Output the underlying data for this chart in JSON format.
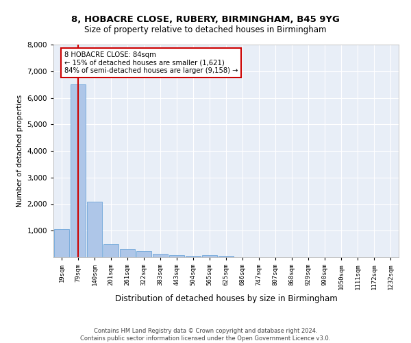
{
  "title1": "8, HOBACRE CLOSE, RUBERY, BIRMINGHAM, B45 9YG",
  "title2": "Size of property relative to detached houses in Birmingham",
  "xlabel": "Distribution of detached houses by size in Birmingham",
  "ylabel": "Number of detached properties",
  "annotation_title": "8 HOBACRE CLOSE: 84sqm",
  "annotation_line2": "← 15% of detached houses are smaller (1,621)",
  "annotation_line3": "84% of semi-detached houses are larger (9,158) →",
  "footer1": "Contains HM Land Registry data © Crown copyright and database right 2024.",
  "footer2": "Contains public sector information licensed under the Open Government Licence v3.0.",
  "bin_labels": [
    "19sqm",
    "79sqm",
    "140sqm",
    "201sqm",
    "261sqm",
    "322sqm",
    "383sqm",
    "443sqm",
    "504sqm",
    "565sqm",
    "625sqm",
    "686sqm",
    "747sqm",
    "807sqm",
    "868sqm",
    "929sqm",
    "990sqm",
    "1050sqm",
    "1111sqm",
    "1172sqm",
    "1232sqm"
  ],
  "bar_heights": [
    1050,
    6500,
    2100,
    480,
    300,
    230,
    130,
    80,
    60,
    70,
    60,
    0,
    0,
    0,
    0,
    0,
    0,
    0,
    0,
    0,
    0
  ],
  "bar_color": "#aec6e8",
  "bar_edge_color": "#5b9bd5",
  "vline_x": 1,
  "vline_color": "#cc0000",
  "annotation_box_color": "#cc0000",
  "background_color": "#e8eef7",
  "ylim": [
    0,
    8000
  ],
  "yticks": [
    1000,
    2000,
    3000,
    4000,
    5000,
    6000,
    7000,
    8000
  ]
}
